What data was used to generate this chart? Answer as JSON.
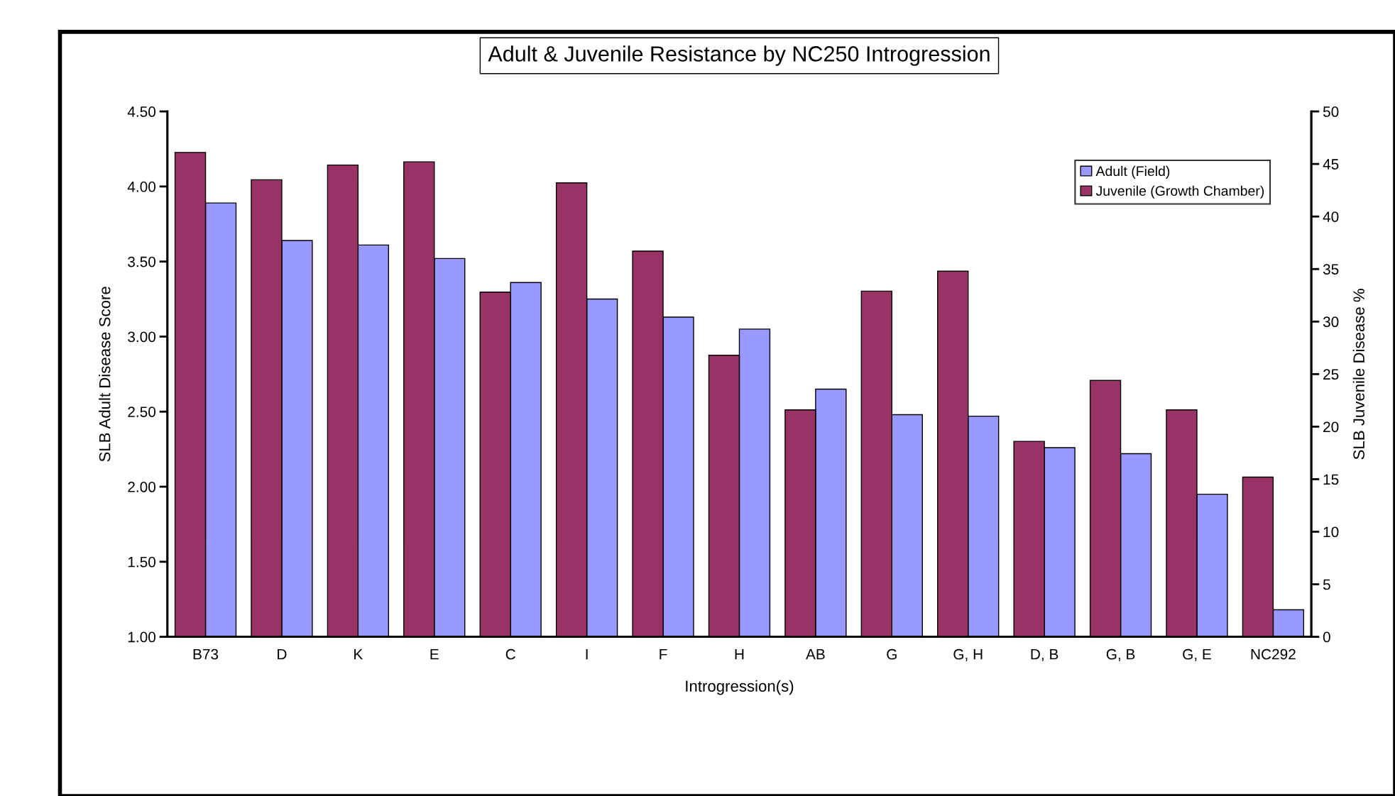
{
  "chart_data": {
    "type": "bar",
    "title": "Adult & Juvenile Resistance by NC250 Introgression",
    "xlabel": "Introgression(s)",
    "ylabel": "SLB Adult Disease Score",
    "y2label": "SLB Juvenile Disease %",
    "categories": [
      "B73",
      "D",
      "K",
      "E",
      "C",
      "I",
      "F",
      "H",
      "AB",
      "G",
      "G, H",
      "D, B",
      "G, B",
      "G, E",
      "NC292"
    ],
    "series": [
      {
        "name": "Adult (Field)",
        "color": "#9999ff",
        "values": [
          3.89,
          3.64,
          3.61,
          3.52,
          3.36,
          3.25,
          3.13,
          3.05,
          2.65,
          2.48,
          2.47,
          2.26,
          2.22,
          1.95,
          1.18
        ]
      },
      {
        "name": "Juvenile (Growth Chamber)",
        "color": "#993366",
        "axis": "y2",
        "values": [
          46.1,
          43.5,
          44.9,
          45.2,
          32.8,
          43.2,
          36.7,
          26.8,
          21.6,
          32.9,
          34.8,
          18.6,
          24.4,
          21.6,
          15.2
        ]
      }
    ],
    "ylim": [
      1.0,
      4.5
    ],
    "yticks": [
      {
        "value": 1.0,
        "label": "1.00"
      },
      {
        "value": 1.5,
        "label": "1.50"
      },
      {
        "value": 2.0,
        "label": "2.00"
      },
      {
        "value": 2.5,
        "label": "2.50"
      },
      {
        "value": 3.0,
        "label": "3.00"
      },
      {
        "value": 3.5,
        "label": "3.50"
      },
      {
        "value": 4.0,
        "label": "4.00"
      },
      {
        "value": 4.5,
        "label": "4.50"
      }
    ],
    "y2lim": [
      0,
      50
    ],
    "y2ticks": [
      0,
      5,
      10,
      15,
      20,
      25,
      30,
      35,
      40,
      45,
      50
    ],
    "grid": false,
    "legend": "top right"
  }
}
